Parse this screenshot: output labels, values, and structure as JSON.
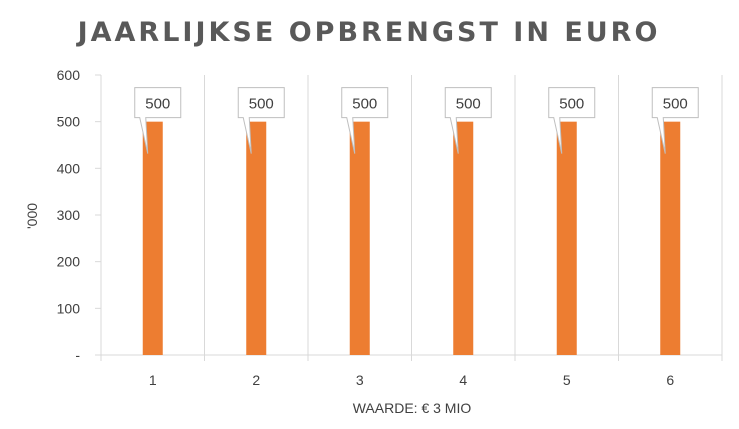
{
  "chart_data": {
    "type": "bar",
    "title": "JAARLIJKSE OPBRENGST IN EURO",
    "xlabel": "WAARDE: € 3 MIO",
    "ylabel": "'000",
    "categories": [
      "1",
      "2",
      "3",
      "4",
      "5",
      "6"
    ],
    "values": [
      500,
      500,
      500,
      500,
      500,
      500
    ],
    "data_labels": [
      "500",
      "500",
      "500",
      "500",
      "500",
      "500"
    ],
    "ylim": [
      0,
      600
    ],
    "yticks": [
      0,
      100,
      200,
      300,
      400,
      500,
      600
    ],
    "ytick_labels": [
      "-",
      "100",
      "200",
      "300",
      "400",
      "500",
      "600"
    ],
    "grid": "vertical",
    "legend": "none",
    "colors": {
      "bar": "#ED7D31",
      "grid": "#d9d9d9",
      "text": "#404040",
      "title": "#595959"
    }
  }
}
